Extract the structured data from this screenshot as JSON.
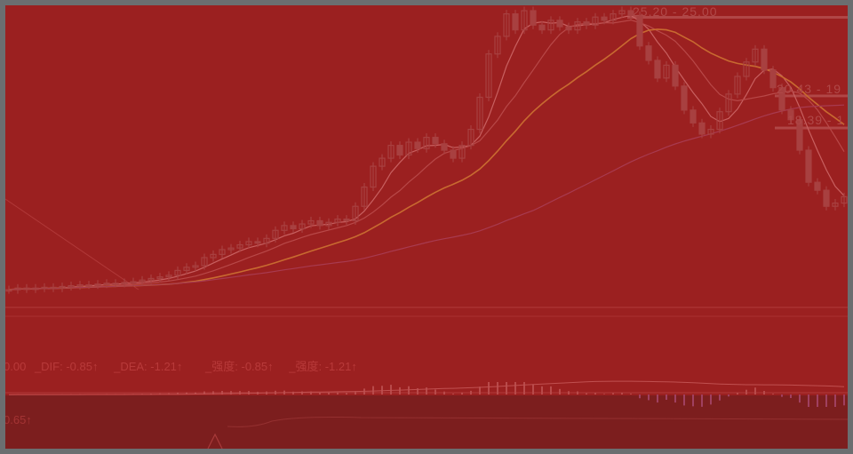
{
  "colors": {
    "frame": "#6b6e70",
    "overlay": "#9b2020",
    "lower_panel": "#7c1e1e",
    "candle": "#a84040",
    "ma5": "#c86060",
    "ma10": "#b84848",
    "ma20": "#c86a30",
    "ma60": "#a83a50"
  },
  "price_levels": [
    {
      "label": "25.20 - 25.00",
      "price": 25.2
    },
    {
      "label": "20.43 - 19",
      "price": 20.3
    },
    {
      "label": "18.39 - 1",
      "price": 18.3
    }
  ],
  "macd_header": {
    "prefix": "0.00",
    "dif": "_DIF: -0.85↑",
    "dea": "_DEA: -1.21↑",
    "s1": "_强度: -0.85↑",
    "s2": "_强度: -1.21↑"
  },
  "lower_header": {
    "value": "0.65↑"
  },
  "chart_data": {
    "type": "candlestick",
    "closes": [
      7.8,
      7.9,
      7.85,
      7.9,
      7.95,
      7.9,
      8.0,
      8.05,
      8.1,
      8.1,
      8.15,
      8.2,
      8.2,
      8.25,
      8.3,
      8.4,
      8.5,
      8.6,
      8.7,
      9.0,
      9.2,
      9.3,
      9.8,
      10.0,
      10.3,
      10.4,
      10.6,
      10.8,
      10.7,
      11.0,
      11.5,
      11.8,
      11.6,
      11.9,
      12.1,
      11.8,
      12.0,
      12.2,
      12.1,
      13.0,
      14.2,
      15.5,
      16.0,
      16.8,
      16.2,
      17.0,
      16.6,
      17.3,
      16.9,
      16.5,
      16.0,
      16.8,
      17.8,
      19.8,
      22.5,
      23.6,
      25.0,
      24.0,
      25.2,
      24.3,
      24.0,
      24.6,
      24.2,
      24.0,
      24.5,
      24.3,
      24.8,
      24.6,
      25.0,
      25.2,
      24.9,
      23.0,
      22.1,
      21.0,
      21.8,
      20.5,
      19.0,
      18.2,
      17.5,
      17.8,
      18.9,
      20.0,
      21.1,
      22.0,
      22.8,
      21.5,
      20.4,
      19.0,
      18.4,
      16.5,
      14.5,
      14.0,
      13.0,
      13.2,
      13.6
    ],
    "moving_averages": [
      5,
      10,
      20,
      60
    ]
  }
}
